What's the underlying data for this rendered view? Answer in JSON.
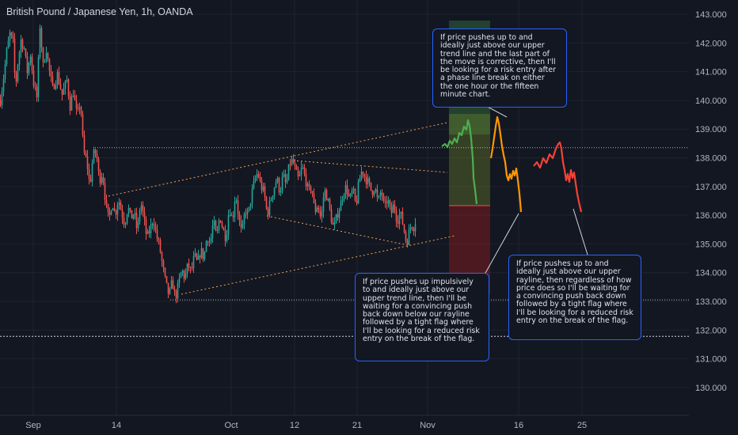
{
  "header": {
    "title": "British Pound / Japanese Yen, 1h, OANDA"
  },
  "chart_data": {
    "type": "candlestick",
    "instrument": "British Pound / Japanese Yen",
    "interval": "1h",
    "source": "OANDA",
    "ylim": [
      129.5,
      143.2
    ],
    "y_ticks": [
      "143.000",
      "142.000",
      "141.000",
      "140.000",
      "139.000",
      "138.000",
      "137.000",
      "136.000",
      "135.000",
      "134.000",
      "133.000",
      "132.000",
      "131.000",
      "130.000"
    ],
    "x_ticks": [
      "Sep",
      "14",
      "Oct",
      "12",
      "21",
      "Nov",
      "16",
      "25"
    ],
    "colors": {
      "up": "#26a69a",
      "down": "#ef5350",
      "grid": "#1f2330",
      "trend": "#f0a04b",
      "note_border": "#2962ff",
      "scenario_green": "#4caf50",
      "scenario_orange": "#ff9800",
      "scenario_red": "#f44336"
    },
    "price_path": [
      {
        "t": 0,
        "p": 140.0
      },
      {
        "t": 4,
        "p": 140.8
      },
      {
        "t": 8,
        "p": 141.7
      },
      {
        "t": 12,
        "p": 142.3
      },
      {
        "t": 16,
        "p": 142.0
      },
      {
        "t": 19,
        "p": 140.4
      },
      {
        "t": 22,
        "p": 141.3
      },
      {
        "t": 26,
        "p": 142.1
      },
      {
        "t": 30,
        "p": 141.8
      },
      {
        "t": 34,
        "p": 141.0
      },
      {
        "t": 38,
        "p": 141.6
      },
      {
        "t": 42,
        "p": 140.6
      },
      {
        "t": 46,
        "p": 140.1
      },
      {
        "t": 50,
        "p": 142.6
      },
      {
        "t": 54,
        "p": 141.2
      },
      {
        "t": 58,
        "p": 141.8
      },
      {
        "t": 62,
        "p": 141.0
      },
      {
        "t": 66,
        "p": 140.4
      },
      {
        "t": 72,
        "p": 140.9
      },
      {
        "t": 78,
        "p": 140.2
      },
      {
        "t": 84,
        "p": 140.7
      },
      {
        "t": 88,
        "p": 139.8
      },
      {
        "t": 92,
        "p": 140.3
      },
      {
        "t": 97,
        "p": 139.4
      },
      {
        "t": 101,
        "p": 140.0
      },
      {
        "t": 105,
        "p": 138.2
      },
      {
        "t": 109,
        "p": 137.9
      },
      {
        "t": 113,
        "p": 137.0
      },
      {
        "t": 117,
        "p": 138.1
      },
      {
        "t": 121,
        "p": 138.2
      },
      {
        "t": 125,
        "p": 137.2
      },
      {
        "t": 129,
        "p": 137.5
      },
      {
        "t": 133,
        "p": 136.4
      },
      {
        "t": 137,
        "p": 135.8
      },
      {
        "t": 141,
        "p": 136.5
      },
      {
        "t": 145,
        "p": 136.0
      },
      {
        "t": 149,
        "p": 136.6
      },
      {
        "t": 153,
        "p": 136.1
      },
      {
        "t": 157,
        "p": 135.7
      },
      {
        "t": 161,
        "p": 136.3
      },
      {
        "t": 165,
        "p": 135.9
      },
      {
        "t": 169,
        "p": 136.1
      },
      {
        "t": 173,
        "p": 135.4
      },
      {
        "t": 177,
        "p": 136.5
      },
      {
        "t": 181,
        "p": 135.9
      },
      {
        "t": 185,
        "p": 135.2
      },
      {
        "t": 189,
        "p": 135.5
      },
      {
        "t": 193,
        "p": 135.9
      },
      {
        "t": 197,
        "p": 135.3
      },
      {
        "t": 201,
        "p": 134.9
      },
      {
        "t": 205,
        "p": 134.2
      },
      {
        "t": 209,
        "p": 133.6
      },
      {
        "t": 213,
        "p": 133.2
      },
      {
        "t": 217,
        "p": 133.7
      },
      {
        "t": 221,
        "p": 133.1
      },
      {
        "t": 225,
        "p": 133.6
      },
      {
        "t": 229,
        "p": 134.1
      },
      {
        "t": 233,
        "p": 133.8
      },
      {
        "t": 237,
        "p": 134.3
      },
      {
        "t": 241,
        "p": 134.0
      },
      {
        "t": 245,
        "p": 134.6
      },
      {
        "t": 249,
        "p": 134.3
      },
      {
        "t": 253,
        "p": 134.8
      },
      {
        "t": 257,
        "p": 134.5
      },
      {
        "t": 261,
        "p": 135.3
      },
      {
        "t": 265,
        "p": 135.0
      },
      {
        "t": 269,
        "p": 135.8
      },
      {
        "t": 273,
        "p": 135.2
      },
      {
        "t": 277,
        "p": 136.0
      },
      {
        "t": 281,
        "p": 135.5
      },
      {
        "t": 285,
        "p": 135.2
      },
      {
        "t": 289,
        "p": 136.3
      },
      {
        "t": 293,
        "p": 135.8
      },
      {
        "t": 297,
        "p": 136.8
      },
      {
        "t": 301,
        "p": 135.9
      },
      {
        "t": 305,
        "p": 135.3
      },
      {
        "t": 309,
        "p": 136.2
      },
      {
        "t": 313,
        "p": 136.0
      },
      {
        "t": 317,
        "p": 136.7
      },
      {
        "t": 321,
        "p": 137.2
      },
      {
        "t": 325,
        "p": 137.5
      },
      {
        "t": 329,
        "p": 137.0
      },
      {
        "t": 333,
        "p": 136.8
      },
      {
        "t": 337,
        "p": 136.0
      },
      {
        "t": 341,
        "p": 136.5
      },
      {
        "t": 345,
        "p": 136.9
      },
      {
        "t": 349,
        "p": 137.3
      },
      {
        "t": 353,
        "p": 136.8
      },
      {
        "t": 357,
        "p": 137.4
      },
      {
        "t": 361,
        "p": 137.0
      },
      {
        "t": 365,
        "p": 137.8
      },
      {
        "t": 369,
        "p": 137.9
      },
      {
        "t": 373,
        "p": 137.5
      },
      {
        "t": 377,
        "p": 137.2
      },
      {
        "t": 381,
        "p": 137.7
      },
      {
        "t": 385,
        "p": 137.3
      },
      {
        "t": 389,
        "p": 136.8
      },
      {
        "t": 393,
        "p": 137.0
      },
      {
        "t": 397,
        "p": 136.1
      },
      {
        "t": 401,
        "p": 136.4
      },
      {
        "t": 405,
        "p": 135.8
      },
      {
        "t": 409,
        "p": 136.9
      },
      {
        "t": 413,
        "p": 136.6
      },
      {
        "t": 417,
        "p": 136.0
      },
      {
        "t": 421,
        "p": 135.5
      },
      {
        "t": 425,
        "p": 136.0
      },
      {
        "t": 429,
        "p": 136.3
      },
      {
        "t": 433,
        "p": 136.8
      },
      {
        "t": 437,
        "p": 137.0
      },
      {
        "t": 441,
        "p": 136.5
      },
      {
        "t": 445,
        "p": 136.9
      },
      {
        "t": 449,
        "p": 136.3
      },
      {
        "t": 453,
        "p": 137.2
      },
      {
        "t": 457,
        "p": 137.6
      },
      {
        "t": 461,
        "p": 137.3
      },
      {
        "t": 465,
        "p": 137.1
      },
      {
        "t": 469,
        "p": 136.8
      },
      {
        "t": 473,
        "p": 137.0
      },
      {
        "t": 477,
        "p": 136.4
      },
      {
        "t": 481,
        "p": 136.9
      },
      {
        "t": 485,
        "p": 136.2
      },
      {
        "t": 489,
        "p": 136.6
      },
      {
        "t": 493,
        "p": 136.0
      },
      {
        "t": 497,
        "p": 136.4
      },
      {
        "t": 501,
        "p": 135.8
      },
      {
        "t": 505,
        "p": 136.1
      },
      {
        "t": 509,
        "p": 135.6
      },
      {
        "t": 513,
        "p": 135.0
      },
      {
        "t": 516,
        "p": 135.4
      },
      {
        "t": 519,
        "p": 135.7
      },
      {
        "t": 522,
        "p": 135.6
      },
      {
        "t": 525,
        "p": 135.9
      }
    ]
  },
  "annotations": {
    "note_top": "If price pushes up to and ideally just above our upper trend line and the last part of the move is corrective, then I'll be looking for a risk entry after a phase line break on either the one hour or the fifteen minute chart.",
    "note_left": "If price pushes up impulsively to and ideally just above our upper trend line, then I'll be waiting for a convincing push back down below our rayline followed by a tight flag where I'll be looking for a reduced risk entry on the break of the flag.",
    "note_right": "If price pushes up to and ideally just above our upper rayline, then regardless of how price does so I'll be waiting for a convincing push back down followed by a tight flag where I'll be looking for a reduced risk entry on the break of the flag."
  }
}
